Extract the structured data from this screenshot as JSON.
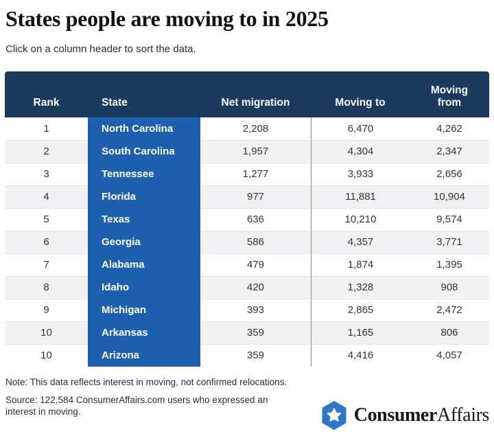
{
  "page": {
    "title": "States people are moving to in 2025",
    "subtitle": "Click on a column header to sort the data."
  },
  "chart_data": {
    "type": "table",
    "title": "States people are moving to in 2025",
    "sortable_hint": "Click on a column header to sort the data.",
    "columns": [
      "Rank",
      "State",
      "Net migration",
      "Moving to",
      "Moving from"
    ],
    "rows": [
      [
        "1",
        "North Carolina",
        "2,208",
        "6,470",
        "4,262"
      ],
      [
        "2",
        "South Carolina",
        "1,957",
        "4,304",
        "2,347"
      ],
      [
        "3",
        "Tennessee",
        "1,277",
        "3,933",
        "2,656"
      ],
      [
        "4",
        "Florida",
        "977",
        "11,881",
        "10,904"
      ],
      [
        "5",
        "Texas",
        "636",
        "10,210",
        "9,574"
      ],
      [
        "6",
        "Georgia",
        "586",
        "4,357",
        "3,771"
      ],
      [
        "7",
        "Alabama",
        "479",
        "1,874",
        "1,395"
      ],
      [
        "8",
        "Idaho",
        "420",
        "1,328",
        "908"
      ],
      [
        "9",
        "Michigan",
        "393",
        "2,865",
        "2,472"
      ],
      [
        "10",
        "Arkansas",
        "359",
        "1,165",
        "806"
      ],
      [
        "10",
        "Arizona",
        "359",
        "4,416",
        "4,057"
      ]
    ]
  },
  "footer": {
    "note": "Note: This data reflects interest in moving, not confirmed relocations.",
    "source": "Source: 122,584 ConsumerAffairs.com users who expressed an interest in moving.",
    "brand": {
      "name_bold": "Consumer",
      "name_regular": "Affairs",
      "icon": "hexagon-star-icon"
    }
  },
  "colors": {
    "header_bg": "#1a3a5e",
    "state_column_bg": "#1d60ae",
    "row_alt_bg": "#f1f1f3",
    "row_separator": "#e3e3e5",
    "column_divider": "#8a8a8a",
    "body_text": "#333333",
    "logo_blue": "#2e76c8"
  }
}
